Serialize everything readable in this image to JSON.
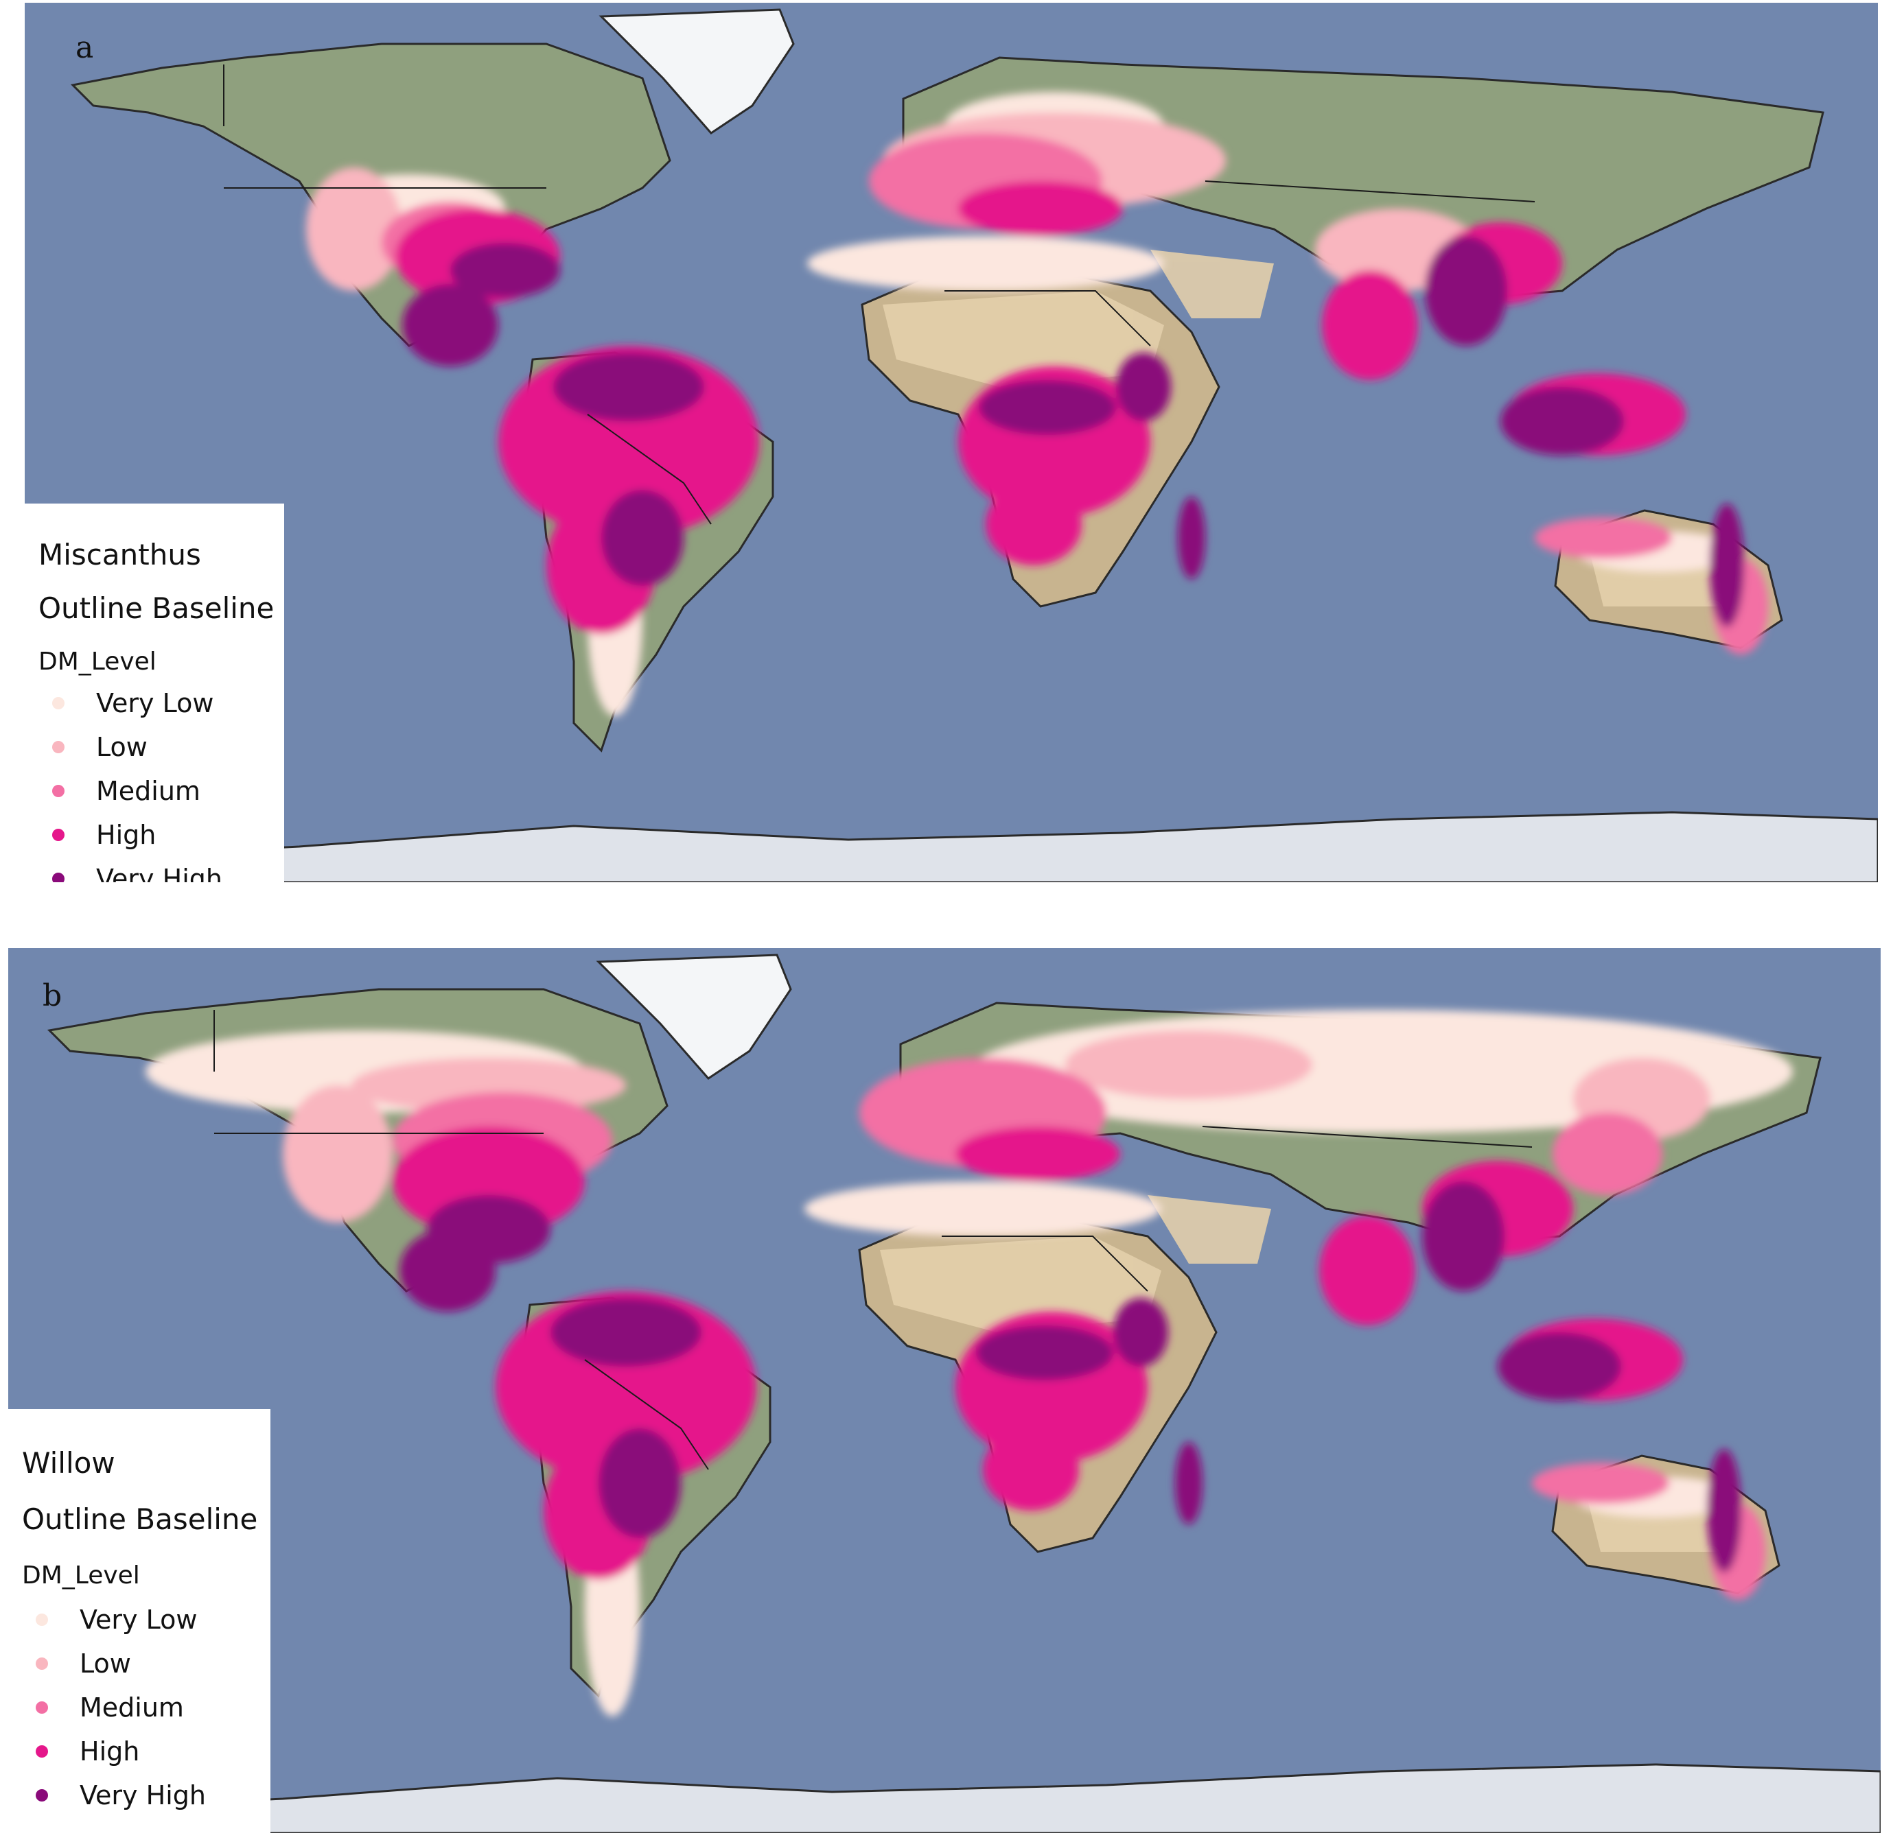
{
  "figure": {
    "panels": [
      {
        "letter": "a",
        "legend": {
          "title_line1": "Miscanthus",
          "title_line2": "Outline Baseline",
          "field_name": "DM_Level",
          "classes": [
            {
              "label": "Very Low",
              "color": "#fce7df"
            },
            {
              "label": "Low",
              "color": "#f9b6bf"
            },
            {
              "label": "Medium",
              "color": "#f36fa4"
            },
            {
              "label": "High",
              "color": "#e5178b"
            },
            {
              "label": "Very High",
              "color": "#8a0a7a"
            }
          ]
        }
      },
      {
        "letter": "b",
        "legend": {
          "title_line1": "Willow",
          "title_line2": "Outline Baseline",
          "field_name": "DM_Level",
          "classes": [
            {
              "label": "Very Low",
              "color": "#fce7df"
            },
            {
              "label": "Low",
              "color": "#f9b6bf"
            },
            {
              "label": "Medium",
              "color": "#f36fa4"
            },
            {
              "label": "High",
              "color": "#e5178b"
            },
            {
              "label": "Very High",
              "color": "#8a0a7a"
            }
          ]
        }
      }
    ],
    "colors": {
      "ocean": "#7187ae",
      "land": "#8fa07e",
      "desert": "#d9c3a0",
      "ice": "#dfe3ea",
      "border": "#1b1b1b"
    }
  }
}
